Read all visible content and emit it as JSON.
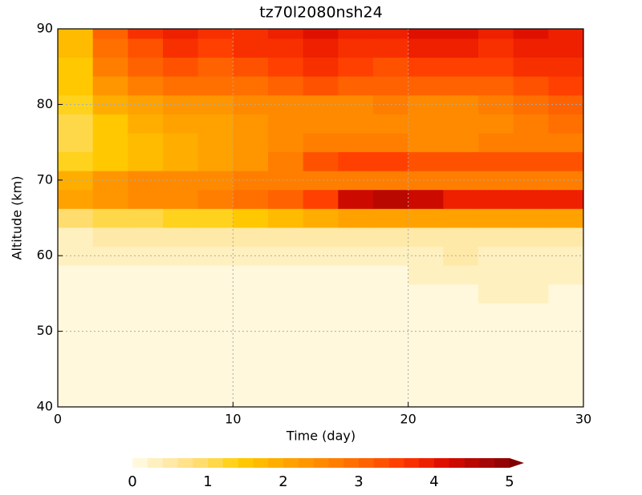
{
  "chart_data": {
    "type": "heatmap",
    "title": "tz70l2080nsh24",
    "x_label": "Time (day)",
    "y_label": "Altitude (km)",
    "x": [
      1,
      3,
      5,
      7,
      9,
      11,
      13,
      15,
      17,
      19,
      21,
      23,
      25,
      27,
      29
    ],
    "y": [
      40,
      42.5,
      45,
      47.5,
      50,
      52.5,
      55,
      57.5,
      60,
      62.5,
      65,
      67.5,
      70,
      72.5,
      75,
      77.5,
      80,
      82.5,
      85,
      87.5,
      90
    ],
    "z": [
      [
        0.1,
        0.1,
        0.1,
        0.1,
        0.1,
        0.1,
        0.1,
        0.1,
        0.1,
        0.1,
        0.1,
        0.1,
        0.1,
        0.1,
        0.1
      ],
      [
        0.1,
        0.1,
        0.1,
        0.1,
        0.1,
        0.1,
        0.1,
        0.1,
        0.1,
        0.1,
        0.1,
        0.1,
        0.1,
        0.1,
        0.1
      ],
      [
        0.1,
        0.1,
        0.1,
        0.1,
        0.1,
        0.1,
        0.1,
        0.1,
        0.1,
        0.1,
        0.1,
        0.1,
        0.1,
        0.1,
        0.1
      ],
      [
        0.1,
        0.1,
        0.1,
        0.1,
        0.1,
        0.1,
        0.1,
        0.1,
        0.1,
        0.1,
        0.1,
        0.1,
        0.1,
        0.1,
        0.1
      ],
      [
        0.1,
        0.1,
        0.1,
        0.1,
        0.1,
        0.1,
        0.1,
        0.1,
        0.1,
        0.1,
        0.1,
        0.1,
        0.1,
        0.1,
        0.1
      ],
      [
        0.1,
        0.1,
        0.1,
        0.1,
        0.1,
        0.1,
        0.1,
        0.1,
        0.1,
        0.1,
        0.1,
        0.1,
        0.1,
        0.1,
        0.1
      ],
      [
        0.1,
        0.1,
        0.1,
        0.1,
        0.1,
        0.1,
        0.1,
        0.1,
        0.1,
        0.1,
        0.1,
        0.1,
        0.3,
        0.3,
        0.1
      ],
      [
        0.1,
        0.1,
        0.1,
        0.1,
        0.1,
        0.1,
        0.1,
        0.1,
        0.1,
        0.1,
        0.3,
        0.3,
        0.3,
        0.3,
        0.3
      ],
      [
        0.2,
        0.2,
        0.2,
        0.2,
        0.2,
        0.3,
        0.3,
        0.3,
        0.3,
        0.3,
        0.3,
        0.4,
        0.3,
        0.3,
        0.3
      ],
      [
        0.3,
        0.4,
        0.4,
        0.5,
        0.5,
        0.5,
        0.5,
        0.5,
        0.5,
        0.5,
        0.5,
        0.5,
        0.5,
        0.5,
        0.5
      ],
      [
        0.8,
        1.0,
        1.0,
        1.2,
        1.3,
        1.5,
        1.6,
        1.8,
        2.0,
        2.0,
        2.0,
        2.0,
        2.0,
        2.0,
        2.0
      ],
      [
        2.0,
        2.2,
        2.4,
        2.5,
        2.6,
        2.8,
        3.0,
        3.4,
        4.2,
        4.5,
        4.2,
        3.8,
        3.8,
        3.8,
        3.8
      ],
      [
        1.8,
        2.2,
        2.4,
        2.5,
        2.5,
        2.6,
        2.6,
        2.6,
        2.6,
        2.6,
        2.6,
        2.6,
        2.6,
        2.6,
        2.6
      ],
      [
        1.2,
        1.5,
        1.6,
        1.8,
        2.0,
        2.2,
        2.6,
        3.2,
        3.4,
        3.4,
        3.3,
        3.2,
        3.2,
        3.2,
        3.3
      ],
      [
        1.0,
        1.4,
        1.6,
        1.8,
        2.0,
        2.2,
        2.4,
        2.6,
        2.6,
        2.6,
        2.5,
        2.5,
        2.6,
        2.6,
        2.7
      ],
      [
        1.0,
        1.5,
        1.8,
        2.0,
        2.0,
        2.2,
        2.4,
        2.4,
        2.5,
        2.5,
        2.4,
        2.4,
        2.5,
        2.6,
        2.8
      ],
      [
        1.2,
        1.8,
        2.0,
        2.2,
        2.2,
        2.4,
        2.5,
        2.5,
        2.5,
        2.6,
        2.5,
        2.5,
        2.7,
        2.8,
        3.0
      ],
      [
        1.4,
        2.2,
        2.6,
        2.8,
        2.8,
        2.8,
        3.0,
        3.2,
        3.0,
        3.0,
        3.0,
        3.0,
        3.0,
        3.2,
        3.4
      ],
      [
        1.5,
        2.6,
        3.0,
        3.2,
        3.0,
        3.2,
        3.4,
        3.6,
        3.4,
        3.2,
        3.4,
        3.4,
        3.4,
        3.6,
        3.6
      ],
      [
        1.6,
        2.8,
        3.2,
        3.6,
        3.4,
        3.6,
        3.6,
        3.8,
        3.6,
        3.6,
        3.8,
        3.8,
        3.6,
        3.8,
        3.8
      ],
      [
        1.6,
        3.0,
        3.6,
        3.8,
        3.6,
        3.6,
        3.8,
        4.0,
        3.8,
        3.8,
        4.0,
        4.0,
        3.8,
        4.0,
        3.8
      ]
    ],
    "xlim": [
      0,
      30
    ],
    "ylim": [
      40,
      90
    ],
    "xticks": [
      0,
      10,
      20,
      30
    ],
    "yticks": [
      40,
      50,
      60,
      70,
      80,
      90
    ],
    "grid": true,
    "levels": [
      0,
      0.2,
      0.4,
      0.6,
      0.8,
      1,
      1.2,
      1.4,
      1.6,
      1.8,
      2,
      2.2,
      2.4,
      2.6,
      2.8,
      3,
      3.2,
      3.4,
      3.6,
      3.8,
      4,
      4.2,
      4.4,
      4.6,
      4.8,
      5
    ],
    "colors": [
      "#fff8dc",
      "#fff0c0",
      "#ffe9a8",
      "#ffe28a",
      "#ffdc6e",
      "#ffd84a",
      "#ffd21e",
      "#ffc800",
      "#ffbb00",
      "#ffae00",
      "#ffa200",
      "#ff9600",
      "#ff8a00",
      "#ff7e00",
      "#ff7000",
      "#ff6200",
      "#ff5200",
      "#ff4000",
      "#f83000",
      "#ee2000",
      "#e01000",
      "#cc0a00",
      "#b80800",
      "#a60606",
      "#940404",
      "#800000"
    ],
    "cbticks": [
      0,
      1,
      2,
      3,
      4,
      5
    ]
  }
}
